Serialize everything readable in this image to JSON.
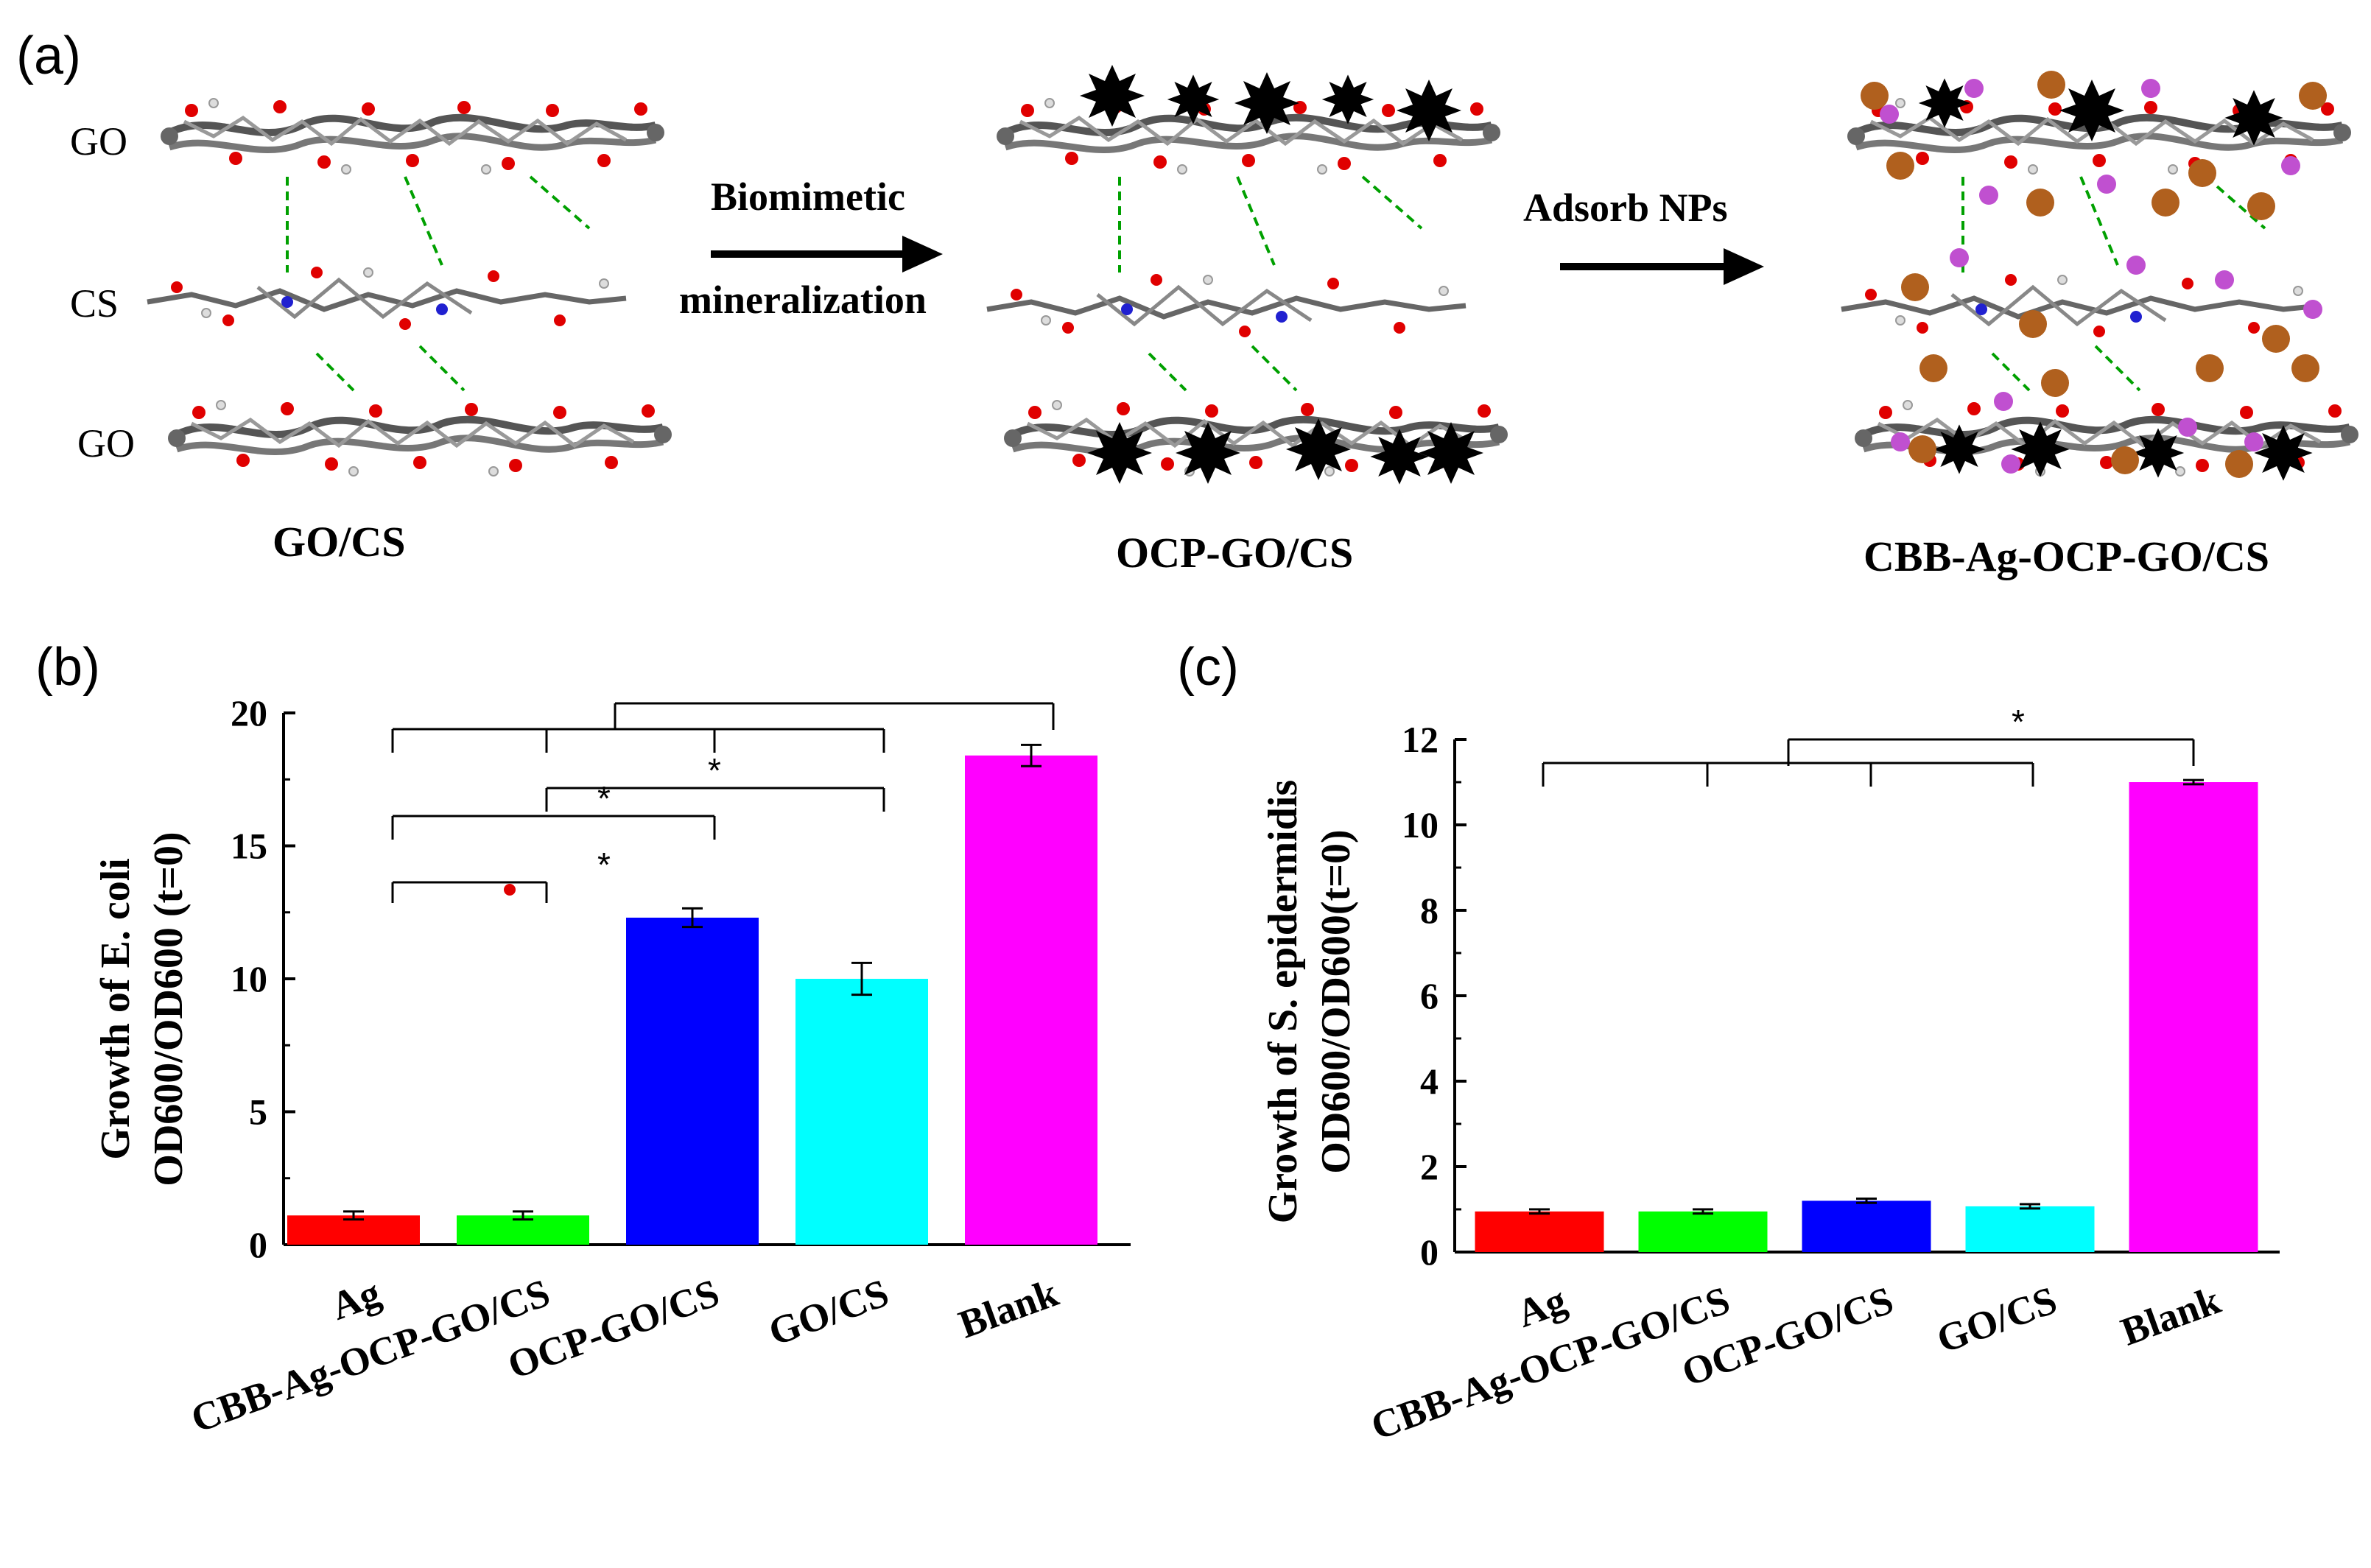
{
  "panel_a": {
    "label": "(a)",
    "layer_labels": [
      "GO",
      "CS",
      "GO"
    ],
    "arrow1_line1": "Biomimetic",
    "arrow1_line2": "mineralization",
    "arrow2": "Adsorb NPs",
    "structures": [
      "GO/CS",
      "OCP-GO/CS",
      "CBB-Ag-OCP-GO/CS"
    ]
  },
  "panel_b": {
    "label": "(b)",
    "ylabel_line1": "Growth of E. coli",
    "ylabel_line2": "OD600/OD600 (t=0)"
  },
  "panel_c": {
    "label": "(c)",
    "ylabel_line1": "Growth of S. epidermidis",
    "ylabel_line2": "OD600/OD600(t=0)"
  },
  "colors": {
    "Ag": "#ff0000",
    "CBB-Ag-OCP-GO/CS": "#00ff00",
    "OCP-GO/CS": "#0000ff",
    "GO/CS": "#00ffff",
    "Blank": "#ff00ff"
  },
  "chart_data": [
    {
      "type": "bar",
      "title": "",
      "xlabel": "",
      "ylabel": "Growth of E. coli OD600/OD600 (t=0)",
      "categories": [
        "Ag",
        "CBB-Ag-OCP-GO/CS",
        "OCP-GO/CS",
        "GO/CS",
        "Blank"
      ],
      "values": [
        1.1,
        1.1,
        12.3,
        10.0,
        18.4
      ],
      "errors": [
        0.15,
        0.15,
        0.35,
        0.6,
        0.4
      ],
      "ylim": [
        0,
        20
      ],
      "yticks": [
        0,
        5,
        10,
        15,
        20
      ],
      "grid": false,
      "significance": [
        "*",
        "*",
        "*"
      ]
    },
    {
      "type": "bar",
      "title": "",
      "xlabel": "",
      "ylabel": "Growth of S. epidermidis OD600/OD600(t=0)",
      "categories": [
        "Ag",
        "CBB-Ag-OCP-GO/CS",
        "OCP-GO/CS",
        "GO/CS",
        "Blank"
      ],
      "values": [
        0.95,
        0.95,
        1.2,
        1.07,
        11.0
      ],
      "errors": [
        0.05,
        0.05,
        0.05,
        0.05,
        0.05
      ],
      "ylim": [
        0,
        12
      ],
      "yticks": [
        0,
        2,
        4,
        6,
        8,
        10,
        12
      ],
      "grid": false,
      "significance": [
        "*"
      ]
    }
  ]
}
